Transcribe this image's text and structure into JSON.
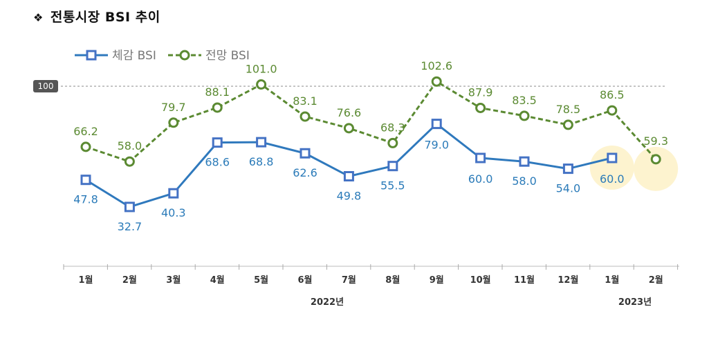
{
  "title": "전통시장  BSI  추이",
  "title_bullet": "❖",
  "chart_data": {
    "type": "line",
    "title": "전통시장 BSI 추이",
    "categories": [
      "1월",
      "2월",
      "3월",
      "4월",
      "5월",
      "6월",
      "7월",
      "8월",
      "9월",
      "10월",
      "11월",
      "12월",
      "1월",
      "2월"
    ],
    "year_labels": [
      {
        "label": "2022년",
        "span": [
          0,
          11
        ]
      },
      {
        "label": "2023년",
        "span": [
          12,
          13
        ]
      }
    ],
    "series": [
      {
        "name": "체감 BSI",
        "color": "#4472c4",
        "line_color": "#2f79bd",
        "style": "solid",
        "marker": "square",
        "values": [
          47.8,
          32.7,
          40.3,
          68.6,
          68.8,
          62.6,
          49.8,
          55.5,
          79.0,
          60.0,
          58.0,
          54.0,
          60.0,
          null
        ],
        "labels": [
          "47.8",
          "32.7",
          "40.3",
          "68.6",
          "68.8",
          "62.6",
          "49.8",
          "55.5",
          "79.0",
          "60.0",
          "58.0",
          "54.0",
          "60.0",
          ""
        ]
      },
      {
        "name": "전망 BSI",
        "color": "#5b8a32",
        "line_color": "#5b8a32",
        "style": "dashed",
        "marker": "circle",
        "values": [
          66.2,
          58.0,
          79.7,
          88.1,
          101.0,
          83.1,
          76.6,
          68.3,
          102.6,
          87.9,
          83.5,
          78.5,
          86.5,
          59.3
        ],
        "labels": [
          "66.2",
          "58.0",
          "79.7",
          "88.1",
          "101.0",
          "83.1",
          "76.6",
          "68.3",
          "102.6",
          "87.9",
          "83.5",
          "78.5",
          "86.5",
          "59.3"
        ]
      }
    ],
    "reference_line": {
      "value": 100,
      "label": "100"
    },
    "ylim": [
      20,
      105
    ],
    "highlights": [
      {
        "series": "체감 BSI",
        "index": 12
      },
      {
        "series": "전망 BSI",
        "index": 13
      }
    ],
    "legend": "top-left",
    "highlight_color": "#fdf3cf"
  }
}
